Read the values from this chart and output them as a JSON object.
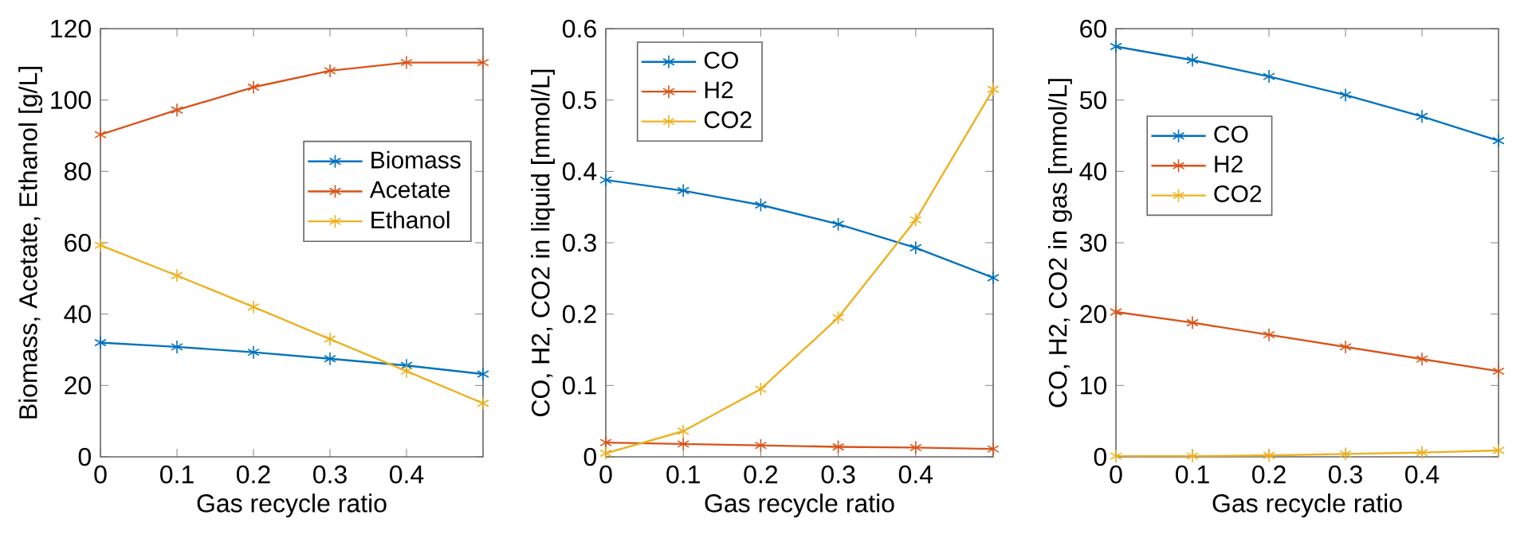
{
  "chart_data": [
    {
      "type": "line",
      "xlabel": "Gas recycle ratio",
      "ylabel": "Biomass, Acetate, Ethanol [g/L]",
      "x": [
        0,
        0.1,
        0.2,
        0.3,
        0.4,
        0.5
      ],
      "xlim": [
        0,
        0.5
      ],
      "xticks": [
        0,
        0.1,
        0.2,
        0.3,
        0.4
      ],
      "ylim": [
        0,
        120
      ],
      "yticks": [
        0,
        20,
        40,
        60,
        80,
        100,
        120
      ],
      "legend": "right",
      "marker": "cross",
      "grid": false,
      "series": [
        {
          "name": "Biomass",
          "color": "#0072bd",
          "values": [
            32,
            30.8,
            29.3,
            27.5,
            25.6,
            23.2
          ]
        },
        {
          "name": "Acetate",
          "color": "#d95319",
          "values": [
            90.3,
            97.2,
            103.6,
            108.2,
            110.5,
            110.5
          ]
        },
        {
          "name": "Ethanol",
          "color": "#edb120",
          "values": [
            59.3,
            50.8,
            42,
            33,
            24,
            15
          ]
        }
      ]
    },
    {
      "type": "line",
      "xlabel": "Gas recycle ratio",
      "ylabel": "CO, H2, CO2 in liquid [mmol/L]",
      "x": [
        0,
        0.1,
        0.2,
        0.3,
        0.4,
        0.5
      ],
      "xlim": [
        0,
        0.5
      ],
      "xticks": [
        0,
        0.1,
        0.2,
        0.3,
        0.4
      ],
      "ylim": [
        0,
        0.6
      ],
      "yticks": [
        0,
        0.1,
        0.2,
        0.3,
        0.4,
        0.5,
        0.6
      ],
      "legend": "top left",
      "marker": "cross",
      "grid": false,
      "series": [
        {
          "name": "CO",
          "color": "#0072bd",
          "values": [
            0.388,
            0.373,
            0.353,
            0.326,
            0.293,
            0.251
          ]
        },
        {
          "name": "H2",
          "color": "#d95319",
          "values": [
            0.02,
            0.018,
            0.016,
            0.014,
            0.013,
            0.011
          ]
        },
        {
          "name": "CO2",
          "color": "#edb120",
          "values": [
            0.005,
            0.036,
            0.095,
            0.195,
            0.332,
            0.515
          ]
        }
      ]
    },
    {
      "type": "line",
      "xlabel": "Gas recycle ratio",
      "ylabel": "CO, H2, CO2 in gas [mmol/L]",
      "x": [
        0,
        0.1,
        0.2,
        0.3,
        0.4,
        0.5
      ],
      "xlim": [
        0,
        0.5
      ],
      "xticks": [
        0,
        0.1,
        0.2,
        0.3,
        0.4
      ],
      "ylim": [
        0,
        60
      ],
      "yticks": [
        0,
        10,
        20,
        30,
        40,
        50,
        60
      ],
      "legend": "left",
      "marker": "cross",
      "grid": false,
      "series": [
        {
          "name": "CO",
          "color": "#0072bd",
          "values": [
            57.5,
            55.6,
            53.3,
            50.7,
            47.7,
            44.3
          ]
        },
        {
          "name": "H2",
          "color": "#d95319",
          "values": [
            20.3,
            18.8,
            17.1,
            15.4,
            13.7,
            12.0
          ]
        },
        {
          "name": "CO2",
          "color": "#edb120",
          "values": [
            0.1,
            0.1,
            0.2,
            0.4,
            0.6,
            0.9
          ]
        }
      ]
    }
  ]
}
